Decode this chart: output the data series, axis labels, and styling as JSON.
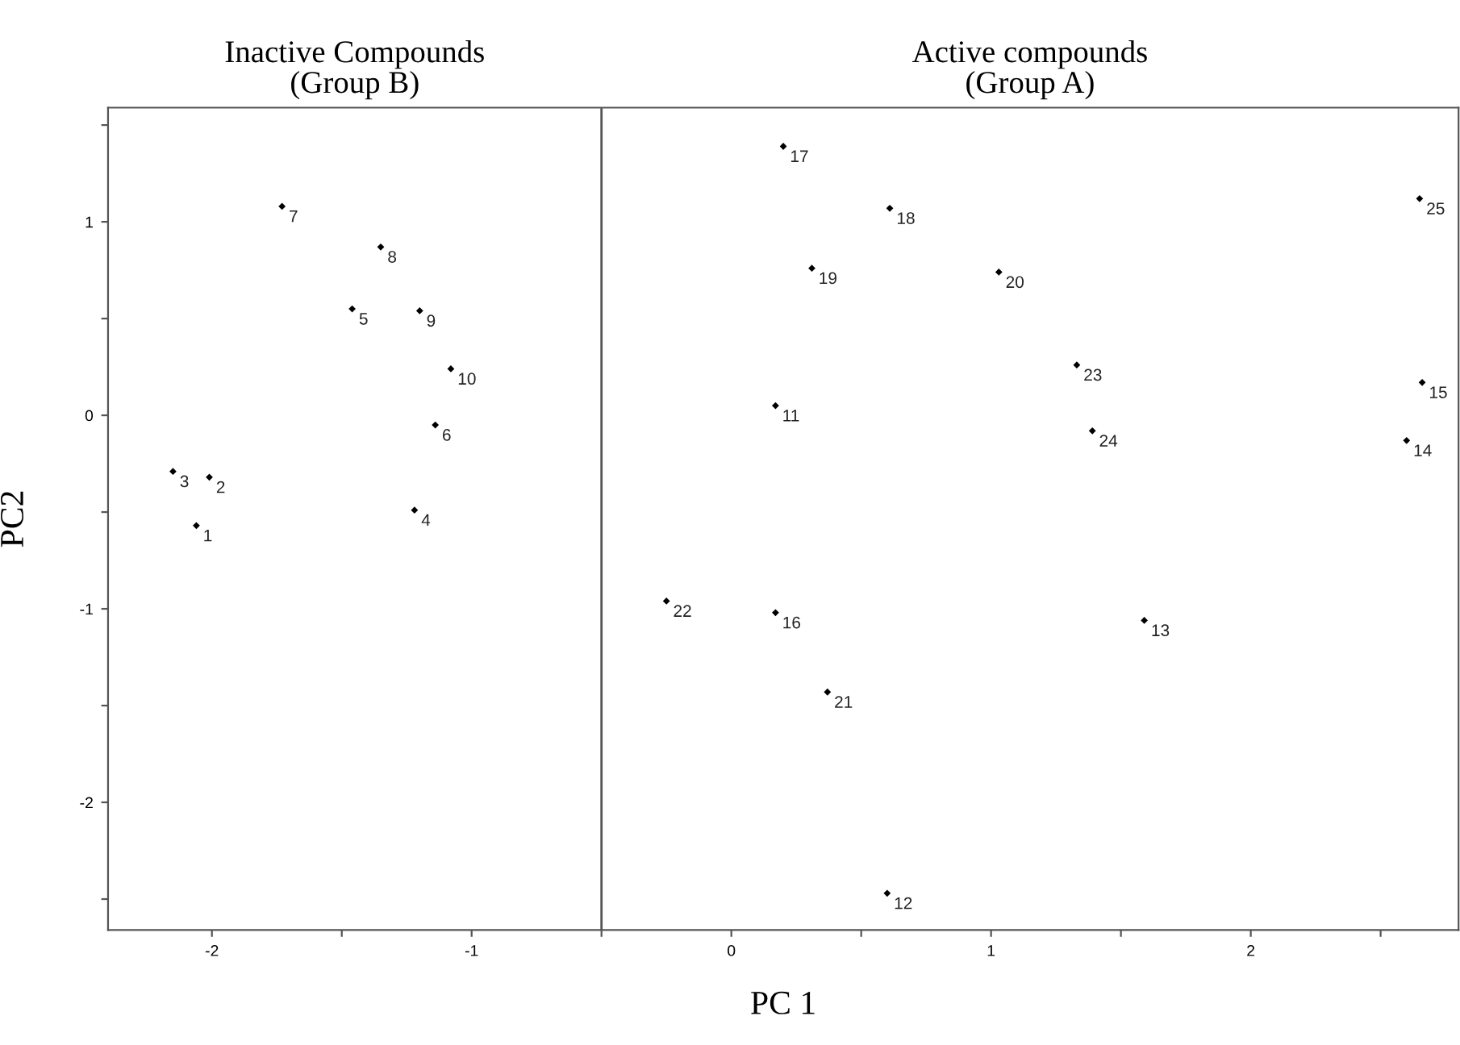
{
  "chart_data": {
    "type": "scatter",
    "xlabel": "PC 1",
    "ylabel": "PC2",
    "x": [
      -2.06,
      -2.01,
      -2.15,
      -1.22,
      -1.46,
      -1.14,
      -1.73,
      -1.35,
      -1.2,
      -1.08,
      0.17,
      0.6,
      1.59,
      2.6,
      2.66,
      0.17,
      0.2,
      0.61,
      0.31,
      1.03,
      0.37,
      -0.25,
      1.33,
      1.39,
      2.65
    ],
    "series": [
      {
        "color": "#000000",
        "values": [
          -0.57,
          -0.32,
          -0.29,
          -0.49,
          0.55,
          -0.05,
          1.08,
          0.87,
          0.54,
          0.24,
          0.05,
          -2.47,
          -1.06,
          -0.13,
          0.17,
          -1.02,
          1.39,
          1.07,
          0.76,
          0.74,
          -1.43,
          -0.96,
          0.26,
          -0.08,
          1.12
        ]
      }
    ],
    "marker": "diamond",
    "xlim": [
      -2.4,
      2.8
    ],
    "ylim": [
      -2.66,
      1.59
    ],
    "xticks": [
      -2,
      {
        "value": -1.5,
        "label": null
      },
      -1,
      {
        "value": -0.5,
        "label": null
      },
      0,
      {
        "value": 0.5,
        "label": null
      },
      1,
      {
        "value": 1.5,
        "label": null
      },
      2,
      {
        "value": 2.5,
        "label": null
      }
    ],
    "yticks": [
      {
        "value": -2.5,
        "label": null
      },
      -2,
      {
        "value": -1.5,
        "label": null
      },
      -1,
      {
        "value": -0.5,
        "label": null
      },
      0,
      {
        "value": 0.5,
        "label": null
      },
      1,
      {
        "value": 1.5,
        "label": null
      }
    ],
    "ref_lines": [
      {
        "axis": "x",
        "value": -0.5,
        "color": "#555555"
      }
    ],
    "annotations": [
      "Inactive Compounds\n(Group B)",
      "Active compounds\n(Group A)",
      {
        "text": "1",
        "x": -2.06,
        "y": -0.57
      },
      {
        "text": "2",
        "x": -2.01,
        "y": -0.32
      },
      {
        "text": "3",
        "x": -2.15,
        "y": -0.29
      },
      {
        "text": "4",
        "x": -1.22,
        "y": -0.49
      },
      {
        "text": "5",
        "x": -1.46,
        "y": 0.55
      },
      {
        "text": "6",
        "x": -1.14,
        "y": -0.05
      },
      {
        "text": "7",
        "x": -1.73,
        "y": 1.08
      },
      {
        "text": "8",
        "x": -1.35,
        "y": 0.87
      },
      {
        "text": "9",
        "x": -1.2,
        "y": 0.54
      },
      {
        "text": "10",
        "x": -1.08,
        "y": 0.24
      },
      {
        "text": "11",
        "x": 0.17,
        "y": 0.05
      },
      {
        "text": "12",
        "x": 0.6,
        "y": -2.47
      },
      {
        "text": "13",
        "x": 1.59,
        "y": -1.06
      },
      {
        "text": "14",
        "x": 2.6,
        "y": -0.13
      },
      {
        "text": "15",
        "x": 2.66,
        "y": 0.17
      },
      {
        "text": "16",
        "x": 0.17,
        "y": -1.02
      },
      {
        "text": "17",
        "x": 0.2,
        "y": 1.39
      },
      {
        "text": "18",
        "x": 0.61,
        "y": 1.07
      },
      {
        "text": "19",
        "x": 0.31,
        "y": 0.76
      },
      {
        "text": "20",
        "x": 1.03,
        "y": 0.74
      },
      {
        "text": "21",
        "x": 0.37,
        "y": -1.43
      },
      {
        "text": "22",
        "x": -0.25,
        "y": -0.96
      },
      {
        "text": "23",
        "x": 1.33,
        "y": 0.26
      },
      {
        "text": "24",
        "x": 1.39,
        "y": -0.08
      },
      {
        "text": "25",
        "x": 2.65,
        "y": 1.12
      }
    ]
  }
}
